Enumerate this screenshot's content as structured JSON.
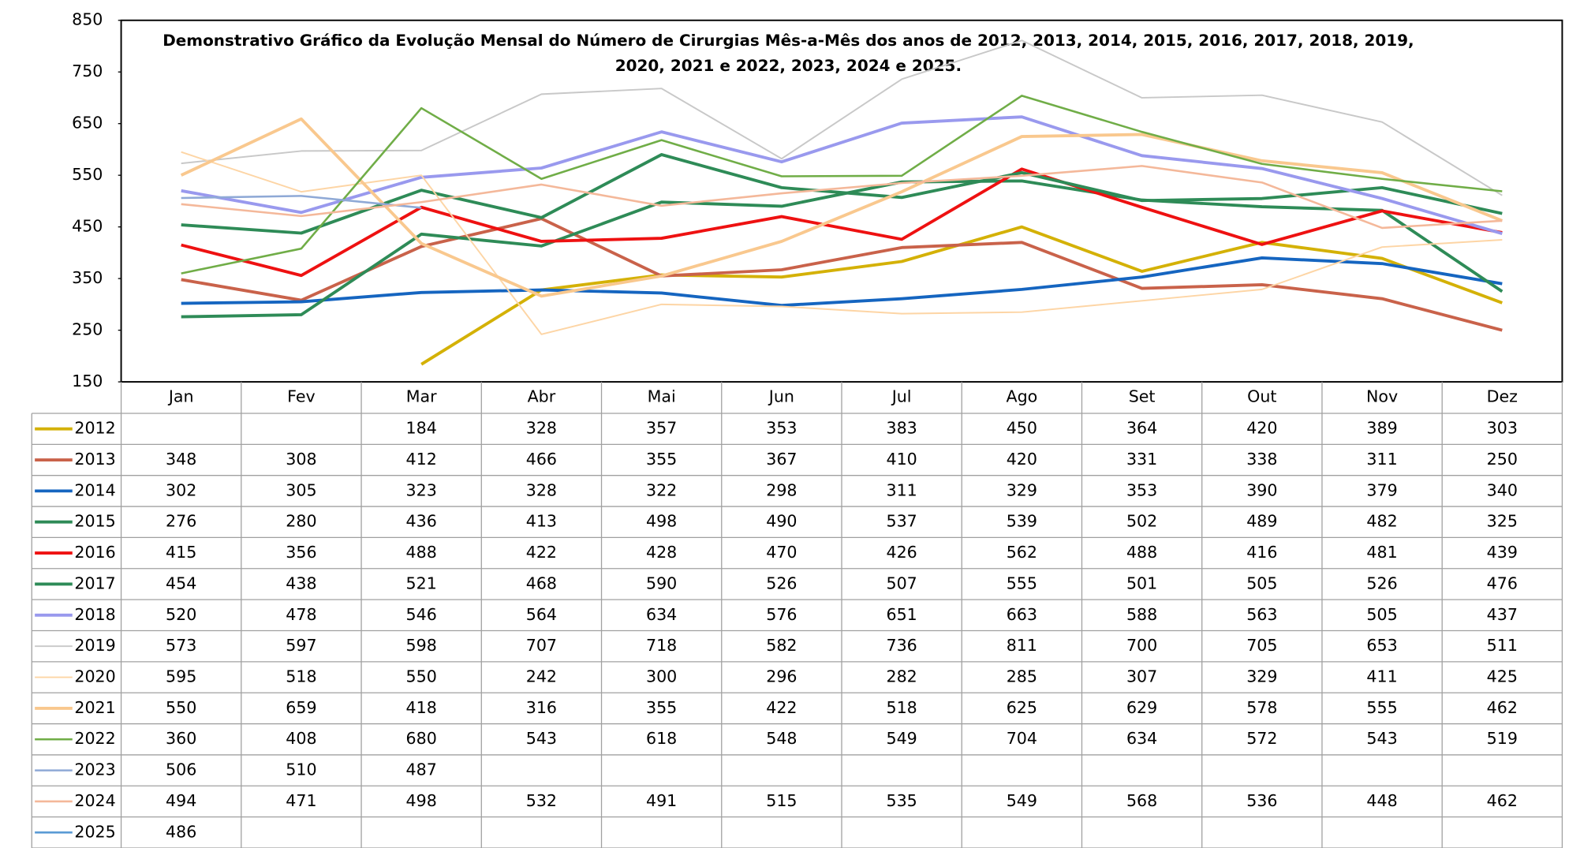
{
  "chart_data": {
    "type": "line",
    "title": "Demonstrativo Gráfico da Evolução Mensal do Número de Cirurgias Mês-a-Mês dos anos de  2012, 2013, 2014, 2015, 2016, 2017, 2018, 2019, 2020, 2021 e 2022, 2023, 2024 e 2025.",
    "categories": [
      "Jan",
      "Fev",
      "Mar",
      "Abr",
      "Mai",
      "Jun",
      "Jul",
      "Ago",
      "Set",
      "Out",
      "Nov",
      "Dez"
    ],
    "ylim": [
      150,
      850
    ],
    "yticks": [
      150,
      250,
      350,
      450,
      550,
      650,
      750,
      850
    ],
    "grid": false,
    "series": [
      {
        "name": "2012",
        "color": "#d4b106",
        "line_width": 3,
        "values": [
          null,
          null,
          184,
          328,
          357,
          353,
          383,
          450,
          364,
          420,
          389,
          303
        ]
      },
      {
        "name": "2013",
        "color": "#c9624a",
        "line_width": 3,
        "values": [
          348,
          308,
          412,
          466,
          355,
          367,
          410,
          420,
          331,
          338,
          311,
          250
        ]
      },
      {
        "name": "2014",
        "color": "#1565c0",
        "line_width": 3,
        "values": [
          302,
          305,
          323,
          328,
          322,
          298,
          311,
          329,
          353,
          390,
          379,
          340
        ]
      },
      {
        "name": "2015",
        "color": "#2e8b57",
        "line_width": 3,
        "values": [
          276,
          280,
          436,
          413,
          498,
          490,
          537,
          539,
          502,
          489,
          482,
          325
        ]
      },
      {
        "name": "2016",
        "color": "#ee1111",
        "line_width": 3,
        "values": [
          415,
          356,
          488,
          422,
          428,
          470,
          426,
          562,
          488,
          416,
          481,
          439
        ]
      },
      {
        "name": "2017",
        "color": "#2e8b57",
        "line_width": 3,
        "values": [
          454,
          438,
          521,
          468,
          590,
          526,
          507,
          555,
          501,
          505,
          526,
          476
        ]
      },
      {
        "name": "2018",
        "color": "#9999ee",
        "line_width": 3,
        "values": [
          520,
          478,
          546,
          564,
          634,
          576,
          651,
          663,
          588,
          563,
          505,
          437
        ]
      },
      {
        "name": "2019",
        "color": "#c8c8c8",
        "line_width": 1.5,
        "values": [
          573,
          597,
          598,
          707,
          718,
          582,
          736,
          811,
          700,
          705,
          653,
          511
        ]
      },
      {
        "name": "2020",
        "color": "#fdd5a5",
        "line_width": 1.5,
        "values": [
          595,
          518,
          550,
          242,
          300,
          296,
          282,
          285,
          307,
          329,
          411,
          425
        ]
      },
      {
        "name": "2021",
        "color": "#f9c88e",
        "line_width": 3,
        "values": [
          550,
          659,
          418,
          316,
          355,
          422,
          518,
          625,
          629,
          578,
          555,
          462
        ]
      },
      {
        "name": "2022",
        "color": "#70ad47",
        "line_width": 2,
        "values": [
          360,
          408,
          680,
          543,
          618,
          548,
          549,
          704,
          634,
          572,
          543,
          519
        ]
      },
      {
        "name": "2023",
        "color": "#8fa9d6",
        "line_width": 2,
        "values": [
          506,
          510,
          487,
          null,
          null,
          null,
          null,
          null,
          null,
          null,
          null,
          null
        ]
      },
      {
        "name": "2024",
        "color": "#f4b89a",
        "line_width": 2,
        "values": [
          494,
          471,
          498,
          532,
          491,
          515,
          535,
          549,
          568,
          536,
          448,
          462
        ]
      },
      {
        "name": "2025",
        "color": "#5b9bd5",
        "line_width": 2,
        "values": [
          486,
          null,
          null,
          null,
          null,
          null,
          null,
          null,
          null,
          null,
          null,
          null
        ]
      }
    ]
  }
}
